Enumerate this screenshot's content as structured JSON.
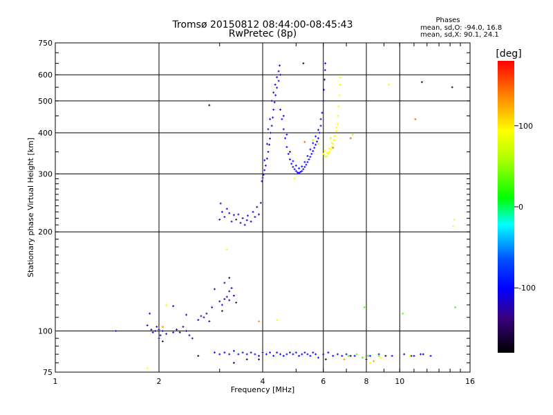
{
  "chart_data": {
    "type": "scatter",
    "title": "Tromsø 20150812 08:44:00-08:45:43",
    "subtitle": "RwPretec (8p)",
    "xlabel": "Frequency [MHz]",
    "ylabel": "Stationary phase Virtual Height [km]",
    "x_scale": "log",
    "y_scale": "log",
    "xlim": [
      1,
      16
    ],
    "ylim": [
      75,
      750
    ],
    "x_ticks": [
      "1",
      "2",
      "4",
      "6",
      "8",
      "10",
      "16"
    ],
    "y_ticks": [
      "75",
      "100",
      "200",
      "300",
      "400",
      "500",
      "600",
      "750"
    ],
    "grid": true,
    "stats": {
      "heading": "Phases",
      "line_o": "mean, sd,O: -94.0, 16.8",
      "line_x": "mean, sd,X:  90.1, 24.1"
    },
    "colorbar": {
      "label": "[deg]",
      "range": [
        -180,
        180
      ],
      "ticks": [
        "100",
        "0",
        "-100"
      ]
    },
    "traces": [
      {
        "phase": -110,
        "points": [
          [
            3.05,
            230
          ],
          [
            3.1,
            222
          ],
          [
            3.15,
            235
          ],
          [
            3.2,
            228
          ],
          [
            3.25,
            215
          ],
          [
            3.3,
            225
          ],
          [
            3.35,
            218
          ],
          [
            3.4,
            226
          ],
          [
            3.45,
            213
          ],
          [
            3.5,
            220
          ],
          [
            3.55,
            210
          ],
          [
            3.6,
            217
          ],
          [
            3.62,
            224
          ],
          [
            3.7,
            215
          ],
          [
            3.75,
            230
          ],
          [
            3.8,
            222
          ],
          [
            3.85,
            238
          ],
          [
            3.9,
            226
          ],
          [
            3.95,
            245
          ],
          [
            3.0,
            218
          ],
          [
            3.02,
            244
          ]
        ]
      },
      {
        "phase": -112,
        "points": [
          [
            3.98,
            285
          ],
          [
            4.0,
            292
          ],
          [
            4.02,
            298
          ],
          [
            4.05,
            308
          ],
          [
            4.08,
            318
          ],
          [
            4.12,
            334
          ],
          [
            4.15,
            350
          ],
          [
            4.18,
            368
          ],
          [
            4.2,
            384
          ],
          [
            4.22,
            400
          ],
          [
            4.25,
            420
          ],
          [
            4.28,
            445
          ],
          [
            4.3,
            470
          ],
          [
            4.33,
            495
          ],
          [
            4.36,
            520
          ],
          [
            4.4,
            548
          ],
          [
            4.45,
            575
          ],
          [
            4.5,
            600
          ],
          [
            4.35,
            560
          ],
          [
            4.4,
            590
          ],
          [
            4.45,
            615
          ],
          [
            4.48,
            640
          ],
          [
            4.25,
            500
          ],
          [
            4.3,
            530
          ],
          [
            4.12,
            370
          ],
          [
            4.15,
            410
          ],
          [
            4.2,
            440
          ],
          [
            4.05,
            330
          ]
        ]
      },
      {
        "phase": -105,
        "points": [
          [
            4.5,
            470
          ],
          [
            4.55,
            440
          ],
          [
            4.6,
            410
          ],
          [
            4.65,
            385
          ],
          [
            4.7,
            362
          ],
          [
            4.75,
            345
          ],
          [
            4.8,
            332
          ],
          [
            4.85,
            322
          ],
          [
            4.9,
            315
          ],
          [
            4.95,
            310
          ],
          [
            5.0,
            306
          ],
          [
            5.05,
            303
          ],
          [
            5.1,
            302
          ],
          [
            5.15,
            304
          ],
          [
            5.2,
            306
          ],
          [
            5.25,
            310
          ],
          [
            5.3,
            315
          ],
          [
            5.35,
            320
          ],
          [
            5.4,
            326
          ],
          [
            5.45,
            332
          ],
          [
            5.5,
            338
          ],
          [
            5.55,
            345
          ],
          [
            5.6,
            352
          ],
          [
            5.65,
            360
          ],
          [
            5.7,
            368
          ],
          [
            5.75,
            376
          ],
          [
            5.8,
            385
          ],
          [
            5.85,
            400
          ],
          [
            5.9,
            420
          ],
          [
            5.95,
            460
          ],
          [
            6.0,
            500
          ],
          [
            6.02,
            540
          ],
          [
            6.05,
            580
          ],
          [
            6.07,
            620
          ],
          [
            6.08,
            650
          ],
          [
            4.6,
            450
          ],
          [
            4.7,
            395
          ],
          [
            4.8,
            350
          ],
          [
            4.9,
            328
          ],
          [
            5.0,
            318
          ],
          [
            5.1,
            312
          ],
          [
            5.2,
            316
          ],
          [
            5.3,
            326
          ],
          [
            5.4,
            340
          ],
          [
            5.5,
            356
          ],
          [
            5.6,
            372
          ],
          [
            5.7,
            390
          ],
          [
            5.8,
            408
          ],
          [
            5.9,
            440
          ]
        ]
      },
      {
        "phase": 95,
        "points": [
          [
            6.0,
            345
          ],
          [
            6.05,
            340
          ],
          [
            6.1,
            338
          ],
          [
            6.15,
            340
          ],
          [
            6.2,
            345
          ],
          [
            6.25,
            350
          ],
          [
            6.3,
            356
          ],
          [
            6.35,
            362
          ],
          [
            6.4,
            370
          ],
          [
            6.45,
            380
          ],
          [
            6.5,
            392
          ],
          [
            6.55,
            405
          ],
          [
            6.6,
            425
          ],
          [
            6.62,
            450
          ],
          [
            6.65,
            480
          ],
          [
            6.68,
            520
          ],
          [
            6.7,
            560
          ],
          [
            6.72,
            590
          ],
          [
            6.05,
            352
          ],
          [
            6.15,
            348
          ],
          [
            6.25,
            358
          ],
          [
            6.35,
            372
          ],
          [
            6.45,
            390
          ],
          [
            6.55,
            415
          ]
        ]
      },
      {
        "phase": 60,
        "points": [
          [
            5.6,
            380
          ],
          [
            5.8,
            370
          ],
          [
            6.3,
            385
          ],
          [
            7.3,
            395
          ]
        ]
      },
      {
        "phase": 150,
        "points": [
          [
            5.3,
            375
          ],
          [
            6.4,
            360
          ],
          [
            11.1,
            440
          ],
          [
            7.2,
            385
          ]
        ]
      },
      {
        "phase": -120,
        "points": [
          [
            1.5,
            100
          ],
          [
            1.85,
            104
          ],
          [
            1.88,
            113
          ],
          [
            1.9,
            101
          ],
          [
            1.92,
            99
          ],
          [
            1.95,
            100
          ],
          [
            1.97,
            103
          ],
          [
            2.0,
            101
          ],
          [
            2.02,
            97
          ],
          [
            2.05,
            100
          ],
          [
            2.1,
            98
          ],
          [
            2.2,
            99
          ],
          [
            2.25,
            101
          ],
          [
            2.3,
            99
          ],
          [
            2.35,
            103
          ],
          [
            2.4,
            100
          ],
          [
            2.45,
            97
          ],
          [
            2.5,
            95
          ],
          [
            2.2,
            119
          ],
          [
            2.4,
            112
          ],
          [
            2.6,
            108
          ],
          [
            2.65,
            111
          ],
          [
            2.7,
            110
          ],
          [
            2.75,
            113
          ],
          [
            2.8,
            107
          ],
          [
            2.85,
            118
          ],
          [
            3.0,
            123
          ],
          [
            3.05,
            120
          ],
          [
            3.1,
            125
          ],
          [
            3.15,
            127
          ],
          [
            3.2,
            124
          ],
          [
            3.3,
            128
          ],
          [
            3.2,
            132
          ],
          [
            3.25,
            135
          ],
          [
            3.35,
            122
          ],
          [
            2.9,
            134
          ],
          [
            3.1,
            140
          ],
          [
            2.0,
            95
          ],
          [
            2.05,
            93
          ]
        ]
      },
      {
        "phase": -100,
        "points": [
          [
            2.9,
            86
          ],
          [
            3.0,
            85
          ],
          [
            3.1,
            86
          ],
          [
            3.2,
            85
          ],
          [
            3.3,
            87
          ],
          [
            3.4,
            85
          ],
          [
            3.5,
            86
          ],
          [
            3.6,
            85
          ],
          [
            3.7,
            86
          ],
          [
            3.8,
            85
          ],
          [
            3.9,
            84
          ],
          [
            4.0,
            86
          ],
          [
            4.1,
            85
          ],
          [
            4.2,
            86
          ],
          [
            4.3,
            84
          ],
          [
            4.4,
            86
          ],
          [
            4.5,
            85
          ],
          [
            4.6,
            84
          ],
          [
            4.7,
            85
          ],
          [
            4.8,
            86
          ],
          [
            4.9,
            85
          ],
          [
            5.0,
            86
          ],
          [
            5.1,
            84
          ],
          [
            5.2,
            85
          ],
          [
            5.3,
            86
          ],
          [
            5.4,
            85
          ],
          [
            5.5,
            84
          ],
          [
            5.6,
            86
          ],
          [
            5.7,
            85
          ],
          [
            5.8,
            83
          ],
          [
            6.0,
            85
          ],
          [
            6.2,
            86
          ],
          [
            6.4,
            84
          ],
          [
            6.6,
            85
          ],
          [
            6.8,
            84
          ],
          [
            7.0,
            85
          ],
          [
            7.4,
            84
          ],
          [
            7.8,
            83
          ],
          [
            8.2,
            84
          ],
          [
            8.7,
            85
          ],
          [
            9.5,
            84
          ],
          [
            10.3,
            85
          ],
          [
            11.0,
            84
          ],
          [
            11.5,
            85
          ],
          [
            12.3,
            84
          ]
        ]
      },
      {
        "phase": -160,
        "points": [
          [
            3.3,
            80
          ],
          [
            3.6,
            82
          ],
          [
            2.6,
            84
          ],
          [
            3.9,
            82
          ],
          [
            6.1,
            82
          ],
          [
            7.2,
            84
          ],
          [
            8.0,
            82
          ],
          [
            10.8,
            84
          ],
          [
            11.7,
            85
          ],
          [
            3.05,
            115
          ],
          [
            3.2,
            145
          ],
          [
            2.8,
            485
          ],
          [
            11.6,
            570
          ],
          [
            14.2,
            550
          ],
          [
            5.25,
            650
          ],
          [
            9.1,
            84
          ]
        ]
      },
      {
        "phase": 30,
        "points": [
          [
            7.5,
            85
          ],
          [
            7.8,
            83
          ],
          [
            7.1,
            84
          ],
          [
            8.1,
            84
          ],
          [
            10.2,
            113
          ],
          [
            14.5,
            118
          ],
          [
            7.9,
            118
          ],
          [
            8.7,
            84
          ]
        ]
      },
      {
        "phase": 90,
        "points": [
          [
            3.15,
            177
          ],
          [
            2.1,
            120
          ],
          [
            4.4,
            108
          ],
          [
            9.3,
            560
          ],
          [
            14.3,
            208
          ],
          [
            14.4,
            218
          ],
          [
            4.95,
            290
          ],
          [
            10.7,
            84
          ],
          [
            1.85,
            77
          ],
          [
            8.2,
            80
          ],
          [
            8.8,
            83
          ]
        ]
      },
      {
        "phase": 130,
        "points": [
          [
            2.05,
            103
          ],
          [
            3.9,
            107
          ],
          [
            6.9,
            82
          ],
          [
            8.4,
            81
          ]
        ]
      }
    ]
  }
}
